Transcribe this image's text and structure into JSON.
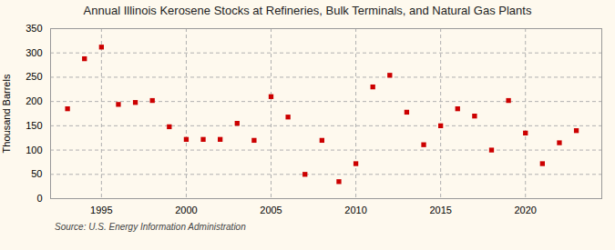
{
  "chart_data": {
    "type": "scatter",
    "title": "Annual Illinois Kerosene Stocks at Refineries, Bulk Terminals, and Natural Gas Plants",
    "ylabel": "Thousand Barrels",
    "annotations": [
      "Source: U.S. Energy Information Administration"
    ],
    "x": [
      1993,
      1994,
      1995,
      1996,
      1997,
      1998,
      1999,
      2000,
      2001,
      2002,
      2003,
      2004,
      2005,
      2006,
      2007,
      2008,
      2009,
      2010,
      2011,
      2012,
      2013,
      2014,
      2015,
      2016,
      2017,
      2018,
      2019,
      2020,
      2021,
      2022,
      2023
    ],
    "values": [
      185,
      288,
      312,
      194,
      198,
      202,
      148,
      122,
      122,
      122,
      155,
      120,
      210,
      168,
      50,
      120,
      35,
      72,
      230,
      254,
      178,
      111,
      150,
      185,
      170,
      100,
      202,
      135,
      72,
      115,
      140
    ],
    "color": "#cc0000",
    "marker": "square",
    "xlim": [
      1992,
      2024.5
    ],
    "ylim": [
      0,
      350
    ],
    "xticks": [
      1995,
      2000,
      2005,
      2010,
      2015,
      2020
    ],
    "yticks": [
      0,
      50,
      100,
      150,
      200,
      250,
      300,
      350
    ],
    "grid": true
  }
}
